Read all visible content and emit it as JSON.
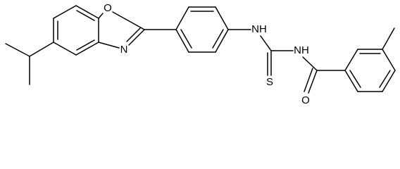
{
  "atoms": {
    "labels": [
      "O",
      "N",
      "NH",
      "S",
      "NH",
      "O"
    ]
  }
}
